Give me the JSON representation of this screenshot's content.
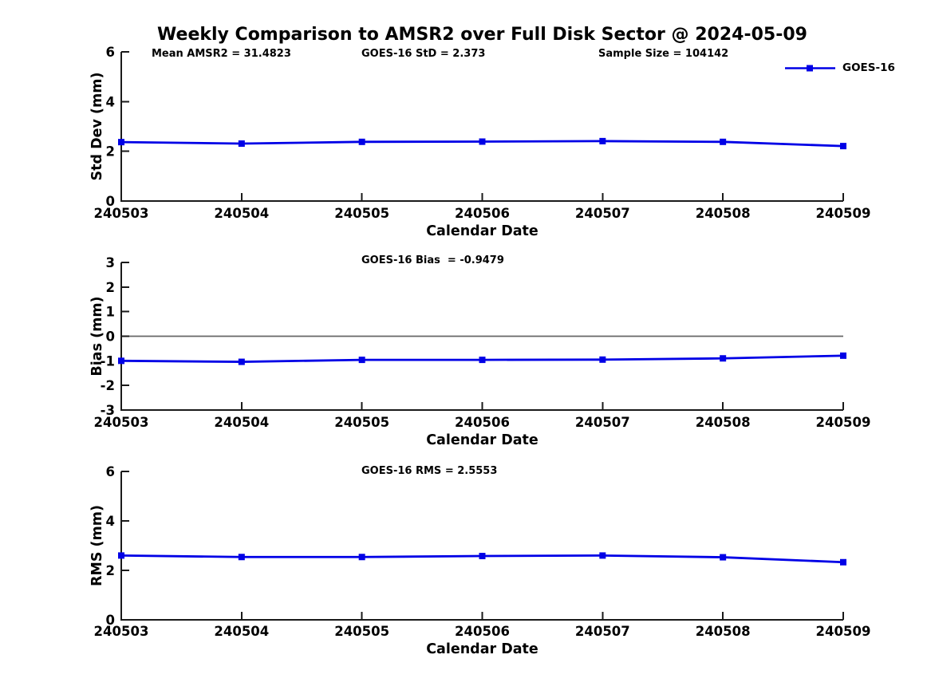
{
  "title": "Weekly Comparison to AMSR2 over Full Disk Sector @ 2024-05-09",
  "legend": {
    "label": "GOES-16"
  },
  "colors": {
    "line": "#0000e6",
    "axis": "#1a1a1a",
    "zero_line": "#666666",
    "text": "#000000"
  },
  "chart_data": [
    {
      "type": "line",
      "name": "std-dev",
      "x": [
        "240503",
        "240504",
        "240505",
        "240506",
        "240507",
        "240508",
        "240509"
      ],
      "series": [
        {
          "name": "GOES-16",
          "values": [
            2.37,
            2.31,
            2.38,
            2.39,
            2.41,
            2.38,
            2.21
          ]
        }
      ],
      "xlabel": "Calendar Date",
      "ylabel": "Std Dev (mm)",
      "ylim": [
        0,
        6
      ],
      "yticks": [
        0,
        2,
        4,
        6
      ],
      "annotations": [
        "Mean AMSR2 = 31.4823",
        "GOES-16 StD = 2.373",
        "Sample Size = 104142"
      ],
      "zero_line": false,
      "legend_position": "top-right",
      "grid": false
    },
    {
      "type": "line",
      "name": "bias",
      "x": [
        "240503",
        "240504",
        "240505",
        "240506",
        "240507",
        "240508",
        "240509"
      ],
      "series": [
        {
          "name": "GOES-16",
          "values": [
            -1.0,
            -1.04,
            -0.96,
            -0.96,
            -0.95,
            -0.9,
            -0.79
          ]
        }
      ],
      "xlabel": "Calendar Date",
      "ylabel": "Bias (mm)",
      "ylim": [
        -3,
        3
      ],
      "yticks": [
        -3,
        -2,
        -1,
        0,
        1,
        2,
        3
      ],
      "annotations": [
        "GOES-16 Bias  = -0.9479"
      ],
      "zero_line": true,
      "grid": false
    },
    {
      "type": "line",
      "name": "rms",
      "x": [
        "240503",
        "240504",
        "240505",
        "240506",
        "240507",
        "240508",
        "240509"
      ],
      "series": [
        {
          "name": "GOES-16",
          "values": [
            2.6,
            2.54,
            2.54,
            2.58,
            2.6,
            2.53,
            2.33
          ]
        }
      ],
      "xlabel": "Calendar Date",
      "ylabel": "RMS (mm)",
      "ylim": [
        0,
        6
      ],
      "yticks": [
        0,
        2,
        4,
        6
      ],
      "annotations": [
        "GOES-16 RMS = 2.5553"
      ],
      "zero_line": false,
      "grid": false
    }
  ]
}
